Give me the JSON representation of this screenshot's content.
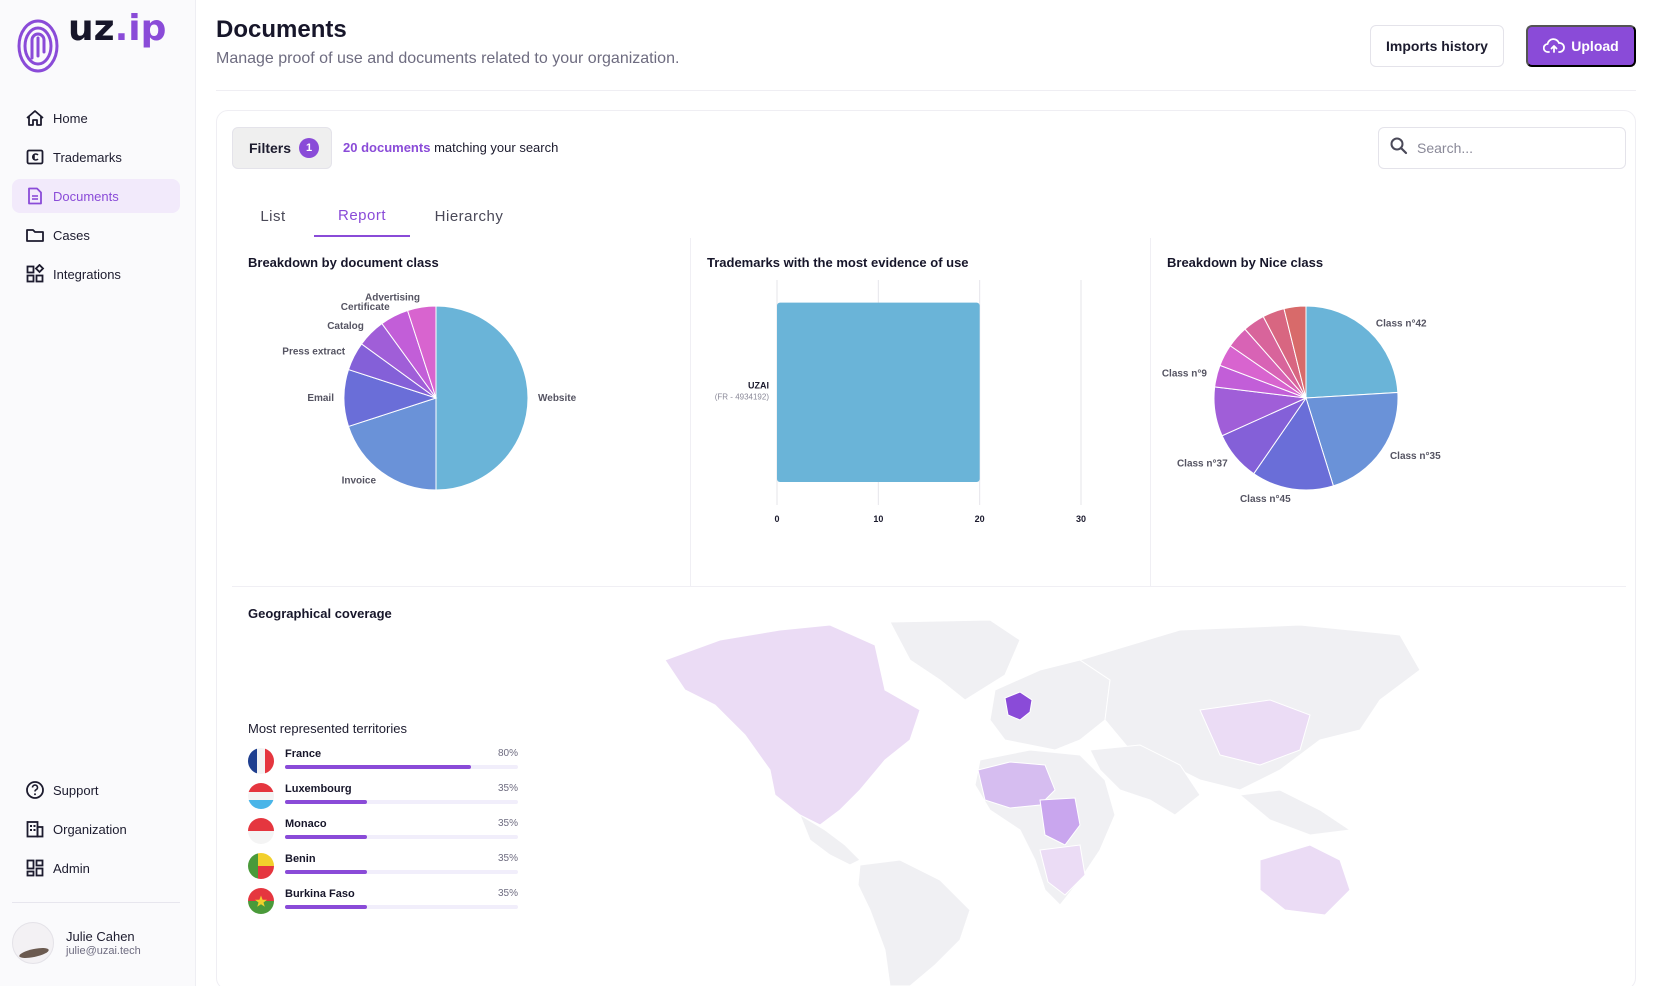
{
  "brand": {
    "logo_main": "uz",
    "logo_suffix": "ip",
    "accent": "#8a4bd8"
  },
  "sidebar": {
    "items": [
      {
        "label": "Home",
        "icon": "home-icon"
      },
      {
        "label": "Trademarks",
        "icon": "trademark-icon"
      },
      {
        "label": "Documents",
        "icon": "document-icon",
        "active": true
      },
      {
        "label": "Cases",
        "icon": "folder-icon"
      },
      {
        "label": "Integrations",
        "icon": "integrations-icon"
      }
    ],
    "bottom_items": [
      {
        "label": "Support",
        "icon": "help-icon"
      },
      {
        "label": "Organization",
        "icon": "building-icon"
      },
      {
        "label": "Admin",
        "icon": "admin-icon"
      }
    ],
    "user": {
      "name": "Julie Cahen",
      "email": "julie@uzai.tech"
    }
  },
  "header": {
    "title": "Documents",
    "subtitle": "Manage proof of use and documents related to your organization.",
    "imports_history_label": "Imports history",
    "upload_label": "Upload"
  },
  "toolbar": {
    "filters_label": "Filters",
    "filters_count": "1",
    "match_count": "20",
    "match_unit": "documents",
    "match_suffix": "matching your search",
    "search_placeholder": "Search..."
  },
  "tabs": [
    {
      "label": "List",
      "active": false
    },
    {
      "label": "Report",
      "active": true
    },
    {
      "label": "Hierarchy",
      "active": false
    }
  ],
  "panels": {
    "doc_class_title": "Breakdown by document class",
    "trademarks_title": "Trademarks with the most evidence of use",
    "nice_title": "Breakdown by Nice class",
    "geo_title": "Geographical coverage",
    "territories_title": "Most represented territories"
  },
  "chart_data": [
    {
      "type": "pie",
      "title": "Breakdown by document class",
      "labels": [
        "Website",
        "Invoice",
        "Email",
        "Press extract",
        "Catalog",
        "Certificate",
        "Advertising"
      ],
      "values": [
        50,
        20,
        10,
        5,
        5,
        5,
        5
      ],
      "colors": [
        "#6ab4d8",
        "#6a92d8",
        "#6a6ed8",
        "#8460d8",
        "#a05ed8",
        "#c25ed8",
        "#d864cf"
      ]
    },
    {
      "type": "bar",
      "orientation": "horizontal",
      "title": "Trademarks with the most evidence of use",
      "categories": [
        "UZAI"
      ],
      "category_sublabels": [
        "(FR - 4934192)"
      ],
      "values": [
        20
      ],
      "xlim": [
        0,
        30
      ],
      "xticks": [
        "0",
        "10",
        "20",
        "30"
      ],
      "color": "#6ab4d8",
      "grid": true
    },
    {
      "type": "pie",
      "title": "Breakdown by Nice class",
      "labels": [
        "Class n°42",
        "Class n°35",
        "Class n°45",
        "Class n°37",
        "",
        "Class n°9",
        "",
        "",
        "",
        "",
        ""
      ],
      "values": [
        25,
        22,
        15,
        9,
        9,
        4,
        4,
        4,
        4,
        4,
        4
      ],
      "colors": [
        "#6ab4d8",
        "#6a92d8",
        "#6a6ed8",
        "#8460d8",
        "#a05ed8",
        "#c25ed8",
        "#d864cf",
        "#d863b5",
        "#d8649b",
        "#d86681",
        "#d86a6a"
      ]
    }
  ],
  "territories": [
    {
      "name": "France",
      "percent": "80%",
      "value": 0.8,
      "flag": "fr"
    },
    {
      "name": "Luxembourg",
      "percent": "35%",
      "value": 0.35,
      "flag": "lu"
    },
    {
      "name": "Monaco",
      "percent": "35%",
      "value": 0.35,
      "flag": "mc"
    },
    {
      "name": "Benin",
      "percent": "35%",
      "value": 0.35,
      "flag": "bj"
    },
    {
      "name": "Burkina Faso",
      "percent": "35%",
      "value": 0.35,
      "flag": "bf"
    }
  ]
}
